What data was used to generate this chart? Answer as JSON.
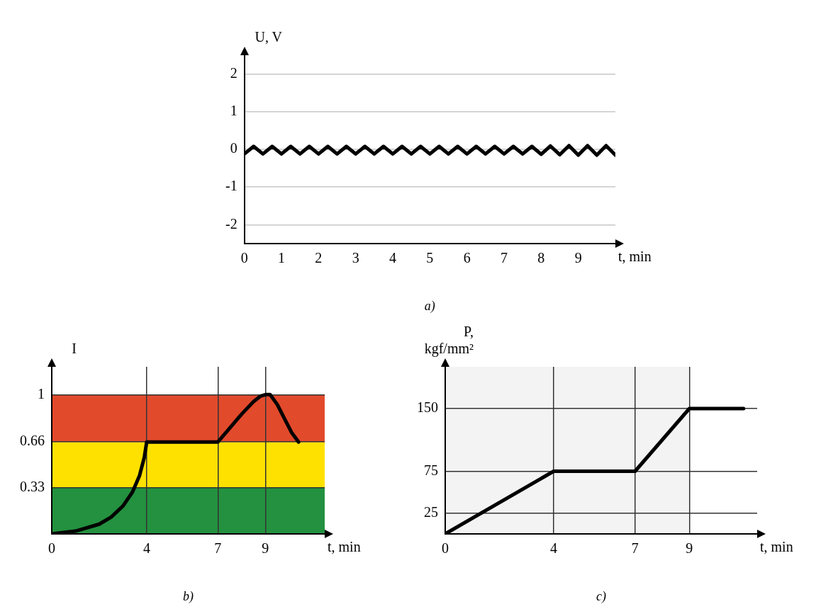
{
  "chart_data": [
    {
      "type": "line",
      "title": "a)",
      "xlabel": "t, min",
      "ylabel": "U, V",
      "xlim": [
        0,
        10
      ],
      "ylim": [
        -2.5,
        2.5
      ],
      "xticks": [
        0,
        1,
        2,
        3,
        4,
        5,
        6,
        7,
        8,
        9
      ],
      "yticks": [
        -2,
        -1,
        0,
        1,
        2
      ],
      "grid": "y",
      "marker": "none",
      "series": [
        {
          "color": "#000000",
          "x": [
            0,
            0.25,
            0.5,
            0.75,
            1,
            1.25,
            1.5,
            1.75,
            2,
            2.25,
            2.5,
            2.75,
            3,
            3.25,
            3.5,
            3.75,
            4,
            4.25,
            4.5,
            4.75,
            5,
            5.25,
            5.5,
            5.75,
            6,
            6.25,
            6.5,
            6.75,
            7,
            7.25,
            7.5,
            7.75,
            8,
            8.25,
            8.5,
            8.75,
            9,
            9.25,
            9.5,
            9.75,
            10
          ],
          "values": [
            -0.12,
            0.08,
            -0.12,
            0.08,
            -0.12,
            0.08,
            -0.12,
            0.08,
            -0.12,
            0.08,
            -0.12,
            0.08,
            -0.12,
            0.08,
            -0.12,
            0.08,
            -0.12,
            0.08,
            -0.12,
            0.08,
            -0.12,
            0.08,
            -0.12,
            0.08,
            -0.12,
            0.08,
            -0.12,
            0.08,
            -0.12,
            0.08,
            -0.12,
            0.08,
            -0.13,
            0.09,
            -0.14,
            0.1,
            -0.15,
            0.1,
            -0.15,
            0.1,
            -0.15
          ]
        }
      ]
    },
    {
      "type": "line",
      "title": "b)",
      "xlabel": "t, min",
      "ylabel": "I",
      "xlim": [
        0,
        11.5
      ],
      "ylim": [
        0,
        1.2
      ],
      "xticks": [
        0,
        4,
        7,
        9
      ],
      "yticks": [
        0.33,
        0.66,
        1
      ],
      "grid": true,
      "marker": "none",
      "bands": [
        {
          "axis": "y",
          "from": 0,
          "to": 0.33,
          "color": "#23913f"
        },
        {
          "axis": "y",
          "from": 0.33,
          "to": 0.66,
          "color": "#ffe100"
        },
        {
          "axis": "y",
          "from": 0.66,
          "to": 1,
          "color": "#e24a2c"
        }
      ],
      "series": [
        {
          "color": "#000000",
          "x": [
            0,
            1,
            2,
            2.5,
            3,
            3.4,
            3.7,
            3.9,
            4,
            7,
            7.3,
            7.7,
            8,
            8.5,
            8.8,
            9,
            9.2,
            9.5,
            9.8,
            10.1,
            10.4
          ],
          "values": [
            0,
            0.02,
            0.07,
            0.12,
            0.2,
            0.3,
            0.42,
            0.55,
            0.66,
            0.66,
            0.72,
            0.8,
            0.86,
            0.95,
            0.99,
            1,
            1,
            0.93,
            0.83,
            0.73,
            0.66
          ]
        }
      ]
    },
    {
      "type": "line",
      "title": "c)",
      "xlabel": "t, min",
      "ylabel": "P, kgf/mm²",
      "xlim": [
        0,
        11.5
      ],
      "ylim": [
        0,
        200
      ],
      "xticks": [
        0,
        4,
        7,
        9
      ],
      "yticks": [
        25,
        75,
        150
      ],
      "grid": true,
      "marker": "none",
      "bands": [
        {
          "axis": "x",
          "from": 0,
          "to": 9,
          "color": "#f3f3f3"
        }
      ],
      "series": [
        {
          "color": "#000000",
          "x": [
            0,
            4,
            7,
            9,
            11
          ],
          "values": [
            0,
            75,
            75,
            150,
            150
          ]
        }
      ]
    }
  ]
}
